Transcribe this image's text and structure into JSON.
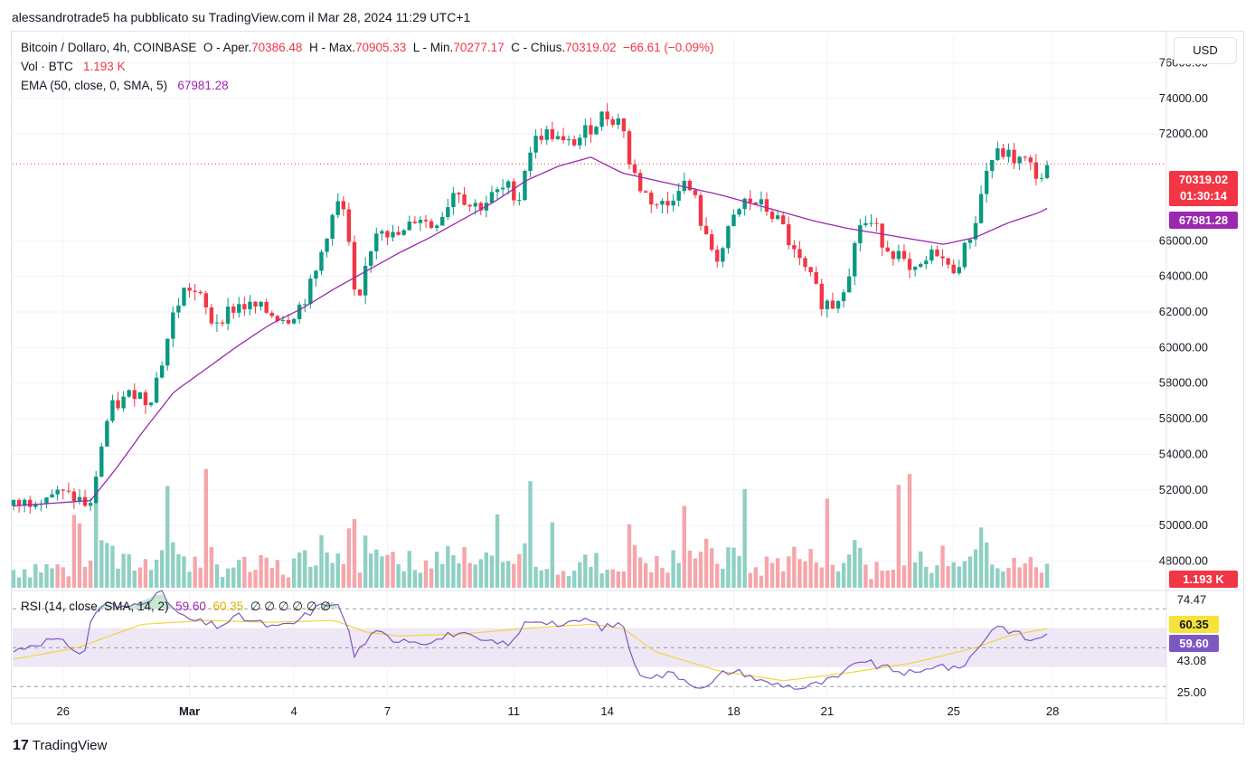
{
  "header": {
    "published": "alessandrotrade5 ha pubblicato su TradingView.com il Mar 28, 2024 11:29 UTC+1"
  },
  "legend": {
    "symbol": "Bitcoin / Dollaro, 4h, COINBASE",
    "open_label": "O - Aper.",
    "open": "70386.48",
    "high_label": "H - Max.",
    "high": "70905.33",
    "low_label": "L - Min.",
    "low": "70277.17",
    "close_label": "C - Chius.",
    "close": "70319.02",
    "change": "−66.61 (−0.09%)",
    "vol_label": "Vol · BTC",
    "vol_value": "1.193 K",
    "ema_label": "EMA (50, close, 0, SMA, 5)",
    "ema_value": "67981.28",
    "rsi_label": "RSI (14, close, SMA, 14, 2)",
    "rsi_value": "59.60",
    "rsi_ma_value": "60.35",
    "rsi_extra": "∅ ∅ ∅ ∅ ∅ ∅"
  },
  "currency_button": "USD",
  "price_tags": {
    "last_price": "70319.02",
    "countdown": "01:30:14",
    "ema": "67981.28",
    "volume": "1.193 K",
    "rsi_ma": "60.35",
    "rsi": "59.60"
  },
  "colors": {
    "up": "#089981",
    "down": "#f23645",
    "up_volume": "#8fd0c3",
    "down_volume": "#f5a6ab",
    "ema": "#9c27b0",
    "rsi_line": "#7e57c2",
    "rsi_ma": "#f0d63f",
    "rsi_band": "#ede7f6"
  },
  "footer": {
    "logo_mark": "17",
    "logo_text": "TradingView"
  },
  "chart_data": [
    {
      "type": "candlestick",
      "title": "Bitcoin / Dollaro, 4h, COINBASE",
      "y_ticks": [
        "76000.00",
        "74000.00",
        "72000.00",
        "66000.00",
        "64000.00",
        "62000.00",
        "60000.00",
        "58000.00",
        "56000.00",
        "54000.00",
        "52000.00",
        "50000.00",
        "48000.00"
      ],
      "x_ticks": [
        "26",
        "Mar",
        "4",
        "7",
        "11",
        "14",
        "18",
        "21",
        "25",
        "28"
      ],
      "ylim": [
        46500,
        77500
      ],
      "close_path": [
        [
          0,
          51100
        ],
        [
          2,
          51300
        ],
        [
          4,
          51650
        ],
        [
          6,
          51800
        ],
        [
          8,
          51700
        ],
        [
          10,
          51500
        ],
        [
          12,
          51000
        ],
        [
          13,
          53200
        ],
        [
          14,
          55000
        ],
        [
          15,
          56500
        ],
        [
          17,
          57000
        ],
        [
          19,
          57600
        ],
        [
          21,
          56900
        ],
        [
          23,
          59000
        ],
        [
          25,
          62000
        ],
        [
          27,
          63500
        ],
        [
          29,
          62800
        ],
        [
          31,
          61400
        ],
        [
          33,
          61900
        ],
        [
          35,
          62400
        ],
        [
          38,
          62200
        ],
        [
          41,
          61800
        ],
        [
          43,
          61700
        ],
        [
          45,
          62500
        ],
        [
          47,
          64000
        ],
        [
          49,
          66700
        ],
        [
          51,
          68400
        ],
        [
          52,
          66600
        ],
        [
          53,
          63000
        ],
        [
          54,
          62500
        ],
        [
          55,
          64800
        ],
        [
          57,
          67100
        ],
        [
          59,
          66200
        ],
        [
          61,
          66400
        ],
        [
          63,
          67500
        ],
        [
          65,
          66800
        ],
        [
          67,
          67600
        ],
        [
          69,
          69100
        ],
        [
          71,
          68000
        ],
        [
          73,
          68000
        ],
        [
          75,
          68600
        ],
        [
          77,
          69000
        ],
        [
          79,
          68400
        ],
        [
          80,
          70800
        ],
        [
          82,
          72000
        ],
        [
          84,
          72000
        ],
        [
          86,
          71300
        ],
        [
          88,
          71700
        ],
        [
          90,
          72400
        ],
        [
          92,
          73100
        ],
        [
          94,
          72800
        ],
        [
          95,
          72700
        ],
        [
          96,
          70300
        ],
        [
          98,
          68800
        ],
        [
          100,
          68100
        ],
        [
          102,
          68000
        ],
        [
          104,
          69400
        ],
        [
          106,
          68600
        ],
        [
          108,
          66000
        ],
        [
          110,
          65000
        ],
        [
          112,
          67000
        ],
        [
          114,
          68200
        ],
        [
          116,
          68100
        ],
        [
          118,
          67600
        ],
        [
          120,
          66700
        ],
        [
          122,
          65000
        ],
        [
          124,
          64000
        ],
        [
          126,
          62600
        ],
        [
          128,
          62400
        ],
        [
          130,
          64000
        ],
        [
          132,
          67000
        ],
        [
          134,
          66900
        ],
        [
          136,
          65700
        ],
        [
          138,
          65200
        ],
        [
          140,
          63900
        ],
        [
          142,
          64700
        ],
        [
          144,
          65500
        ],
        [
          146,
          64200
        ],
        [
          148,
          65200
        ],
        [
          150,
          67200
        ],
        [
          152,
          70400
        ],
        [
          154,
          71000
        ],
        [
          156,
          70600
        ],
        [
          158,
          70400
        ],
        [
          160,
          69500
        ],
        [
          162,
          70300
        ]
      ],
      "ema_path": [
        [
          0,
          51100
        ],
        [
          12,
          51400
        ],
        [
          16,
          53200
        ],
        [
          20,
          55200
        ],
        [
          25,
          57500
        ],
        [
          30,
          58800
        ],
        [
          35,
          60100
        ],
        [
          40,
          61300
        ],
        [
          45,
          62200
        ],
        [
          50,
          63300
        ],
        [
          55,
          64300
        ],
        [
          60,
          65300
        ],
        [
          65,
          66200
        ],
        [
          70,
          67200
        ],
        [
          75,
          68200
        ],
        [
          80,
          69400
        ],
        [
          85,
          70200
        ],
        [
          90,
          70700
        ],
        [
          95,
          69800
        ],
        [
          100,
          69400
        ],
        [
          105,
          69000
        ],
        [
          110,
          68600
        ],
        [
          115,
          68100
        ],
        [
          120,
          67600
        ],
        [
          125,
          67100
        ],
        [
          130,
          66700
        ],
        [
          135,
          66400
        ],
        [
          140,
          66100
        ],
        [
          145,
          65800
        ],
        [
          150,
          66200
        ],
        [
          155,
          67000
        ],
        [
          160,
          67600
        ],
        [
          162,
          67981.28
        ]
      ]
    },
    {
      "type": "line",
      "title": "RSI (14, close, SMA, 14, 2)",
      "y_ticks": [
        "74.47",
        "60.35",
        "59.60",
        "43.08",
        "25.00"
      ],
      "ylim": [
        25,
        78
      ],
      "band": [
        40,
        60
      ],
      "rsi_path": [
        [
          0,
          48
        ],
        [
          3,
          52
        ],
        [
          6,
          54
        ],
        [
          9,
          51
        ],
        [
          11,
          45
        ],
        [
          12,
          64
        ],
        [
          14,
          73
        ],
        [
          17,
          70
        ],
        [
          20,
          74
        ],
        [
          23,
          78
        ],
        [
          26,
          66
        ],
        [
          29,
          63
        ],
        [
          32,
          61
        ],
        [
          35,
          66
        ],
        [
          38,
          63
        ],
        [
          41,
          60
        ],
        [
          44,
          63
        ],
        [
          47,
          70
        ],
        [
          50,
          74
        ],
        [
          52,
          63
        ],
        [
          53,
          45
        ],
        [
          55,
          54
        ],
        [
          57,
          58
        ],
        [
          59,
          54
        ],
        [
          61,
          55
        ],
        [
          63,
          53
        ],
        [
          66,
          54
        ],
        [
          69,
          58
        ],
        [
          72,
          54
        ],
        [
          75,
          52
        ],
        [
          78,
          53
        ],
        [
          80,
          64
        ],
        [
          83,
          64
        ],
        [
          86,
          61
        ],
        [
          89,
          65
        ],
        [
          92,
          60
        ],
        [
          95,
          63
        ],
        [
          97,
          38
        ],
        [
          100,
          35
        ],
        [
          103,
          37
        ],
        [
          105,
          33
        ],
        [
          108,
          29
        ],
        [
          111,
          38
        ],
        [
          114,
          37
        ],
        [
          117,
          32
        ],
        [
          120,
          31
        ],
        [
          123,
          29
        ],
        [
          126,
          32
        ],
        [
          129,
          35
        ],
        [
          132,
          44
        ],
        [
          135,
          40
        ],
        [
          138,
          38
        ],
        [
          141,
          36
        ],
        [
          144,
          42
        ],
        [
          147,
          38
        ],
        [
          150,
          48
        ],
        [
          153,
          62
        ],
        [
          156,
          58
        ],
        [
          159,
          53
        ],
        [
          162,
          59.6
        ]
      ],
      "rsi_ma_path": [
        [
          0,
          44
        ],
        [
          10,
          50
        ],
        [
          20,
          62
        ],
        [
          30,
          64
        ],
        [
          40,
          63
        ],
        [
          50,
          64
        ],
        [
          55,
          58
        ],
        [
          60,
          56
        ],
        [
          70,
          57
        ],
        [
          80,
          60
        ],
        [
          90,
          62
        ],
        [
          95,
          60
        ],
        [
          100,
          48
        ],
        [
          110,
          38
        ],
        [
          120,
          33
        ],
        [
          130,
          37
        ],
        [
          140,
          42
        ],
        [
          150,
          50
        ],
        [
          155,
          56
        ],
        [
          162,
          60.35
        ]
      ]
    }
  ]
}
